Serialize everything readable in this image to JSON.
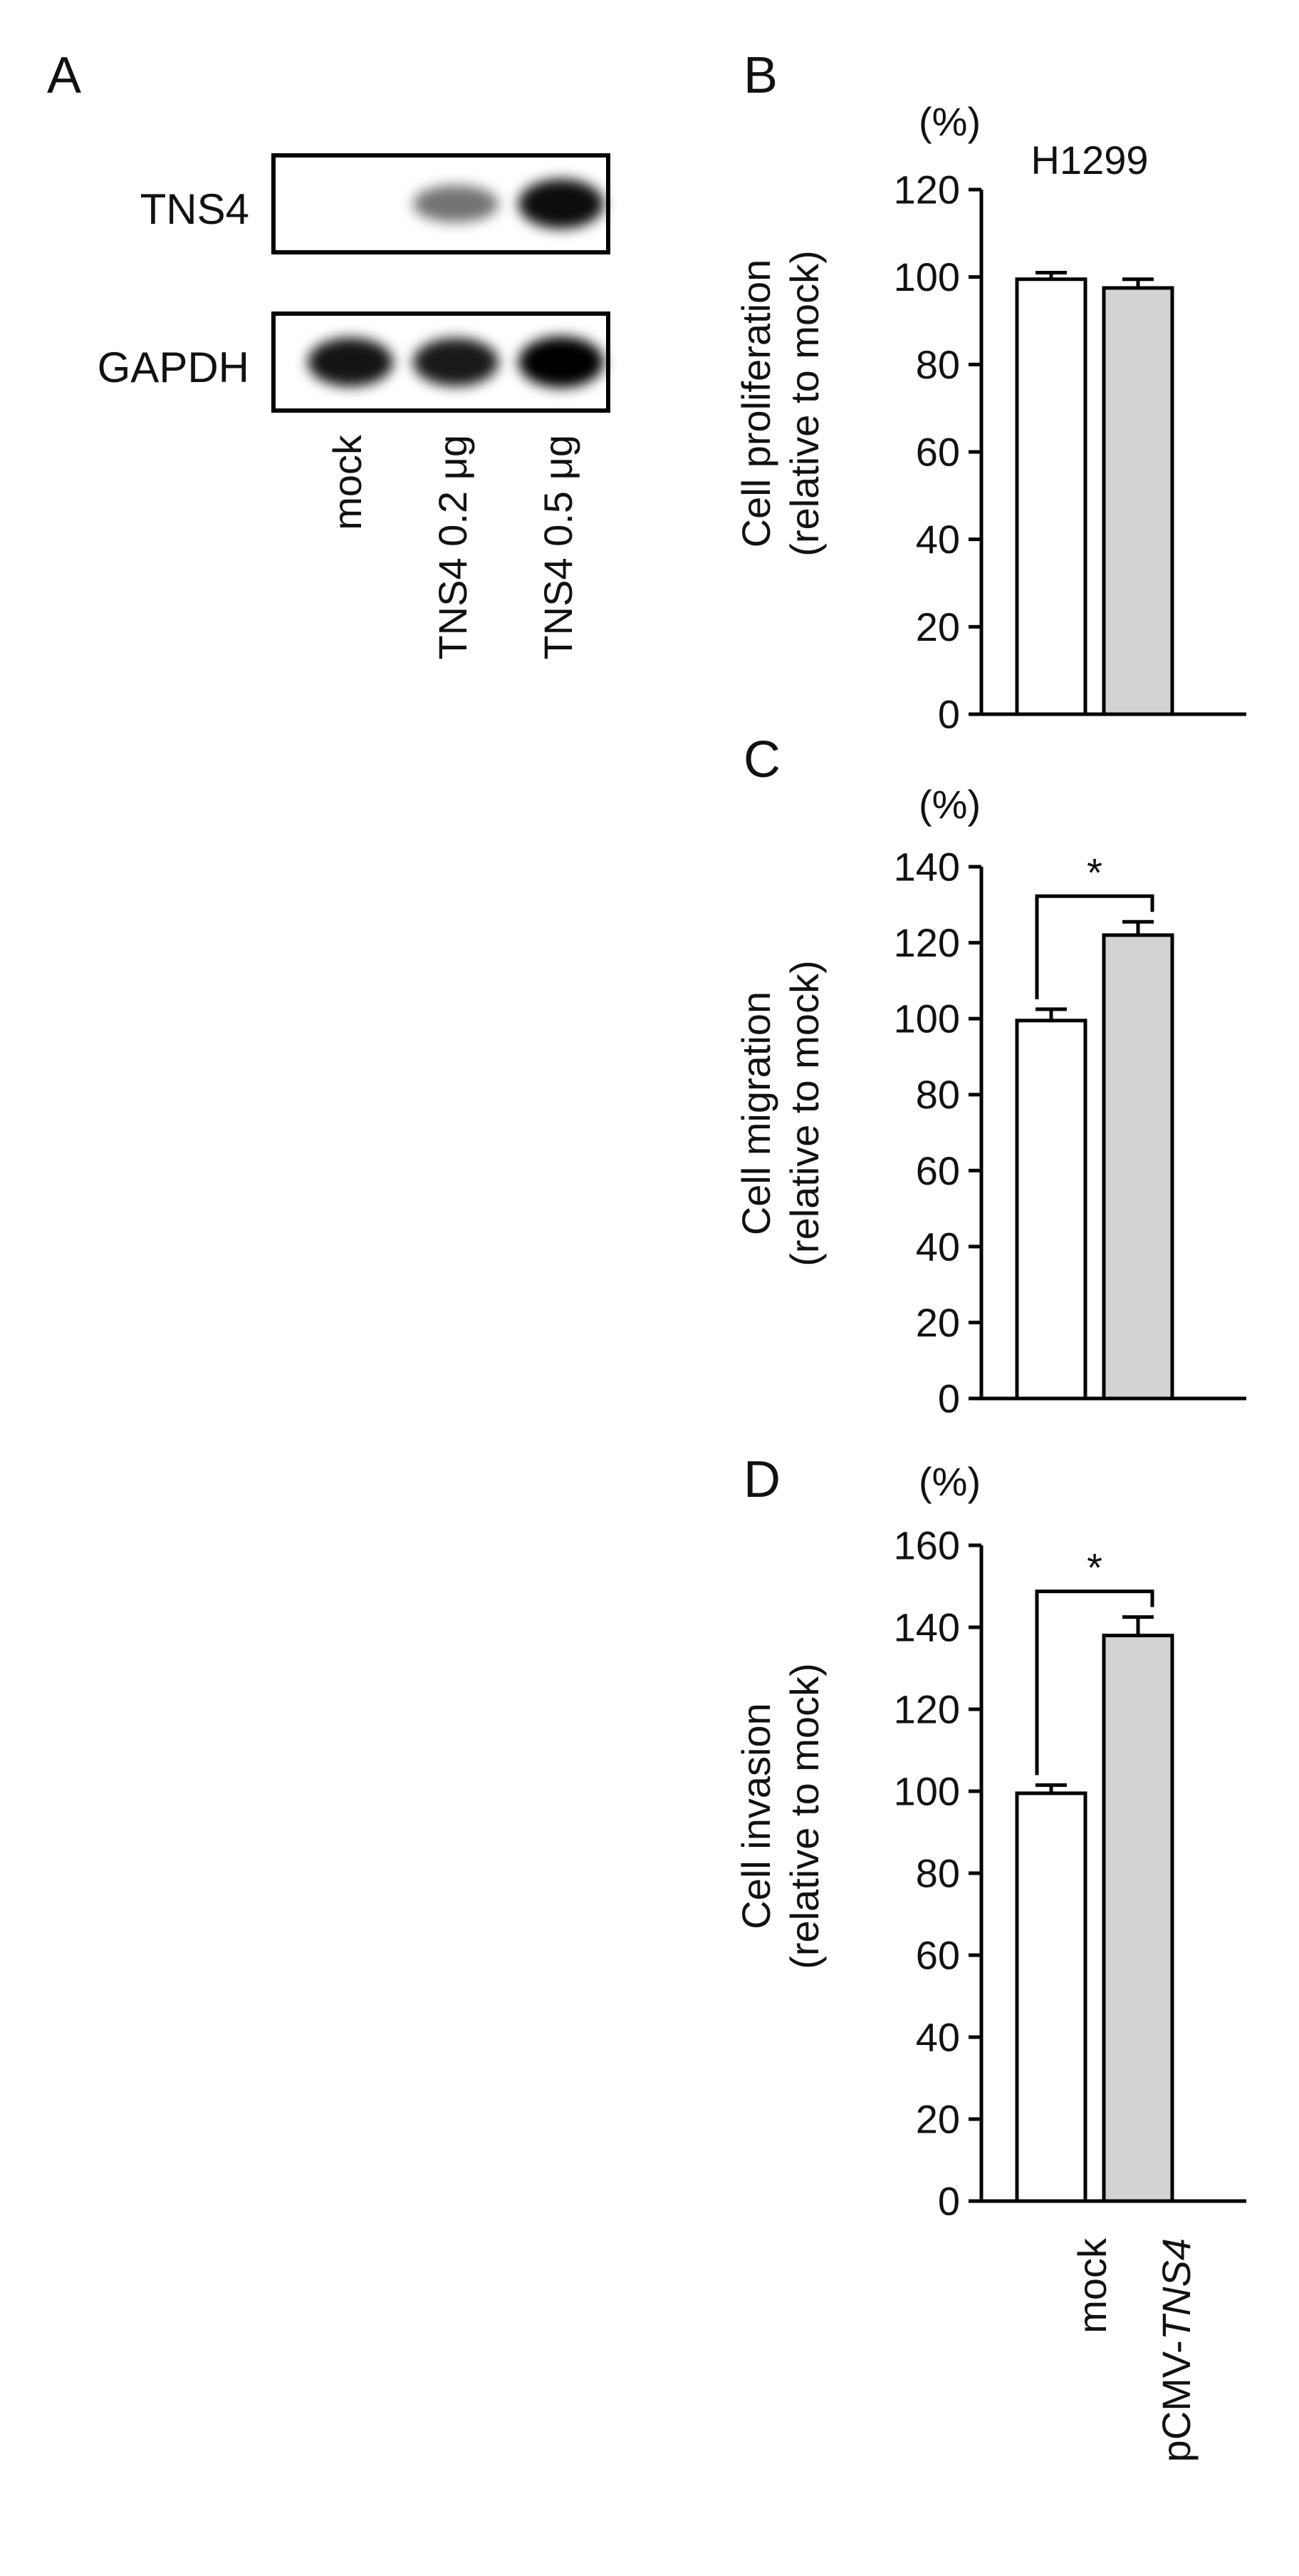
{
  "panel_a": {
    "letter": "A",
    "bands": [
      {
        "label": "TNS4",
        "intensities": [
          0.05,
          0.55,
          0.95
        ]
      },
      {
        "label": "GAPDH",
        "intensities": [
          0.92,
          0.9,
          1.0
        ]
      }
    ],
    "lanes": [
      "mock",
      "TNS4 0.2 μg",
      "TNS4 0.5 μg"
    ]
  },
  "chart_data": [
    {
      "panel": "B",
      "type": "bar",
      "title": "H1299",
      "unit": "(%)",
      "ylabel_lines": [
        "Cell proliferation",
        "(relative to mock)"
      ],
      "categories": [
        "mock",
        "pCMV-TNS4"
      ],
      "values": [
        99.5,
        97.5
      ],
      "errors": [
        1.5,
        2.0
      ],
      "bar_colors": [
        "#ffffff",
        "#d3d3d3"
      ],
      "ylim": [
        0,
        120
      ],
      "yticks": [
        0,
        20,
        40,
        60,
        80,
        100,
        120
      ],
      "significance": null,
      "grid": false
    },
    {
      "panel": "C",
      "type": "bar",
      "unit": "(%)",
      "ylabel_lines": [
        "Cell migration",
        "(relative to mock)"
      ],
      "categories": [
        "mock",
        "pCMV-TNS4"
      ],
      "values": [
        99.5,
        122
      ],
      "errors": [
        3.0,
        3.5
      ],
      "bar_colors": [
        "#ffffff",
        "#d3d3d3"
      ],
      "ylim": [
        0,
        140
      ],
      "yticks": [
        0,
        20,
        40,
        60,
        80,
        100,
        120,
        140
      ],
      "significance": "*",
      "grid": false
    },
    {
      "panel": "D",
      "type": "bar",
      "unit": "(%)",
      "ylabel_lines": [
        "Cell invasion",
        "(relative to mock)"
      ],
      "categories": [
        "mock",
        "pCMV-TNS4"
      ],
      "values": [
        99.5,
        138
      ],
      "errors": [
        2.0,
        4.5
      ],
      "bar_colors": [
        "#ffffff",
        "#d3d3d3"
      ],
      "ylim": [
        0,
        160
      ],
      "yticks": [
        0,
        20,
        40,
        60,
        80,
        100,
        120,
        140,
        160
      ],
      "significance": "*",
      "grid": false
    }
  ],
  "x_labels": {
    "mock": "mock",
    "pcmv_prefix": "pCMV-",
    "pcmv_gene": "TNS4"
  }
}
